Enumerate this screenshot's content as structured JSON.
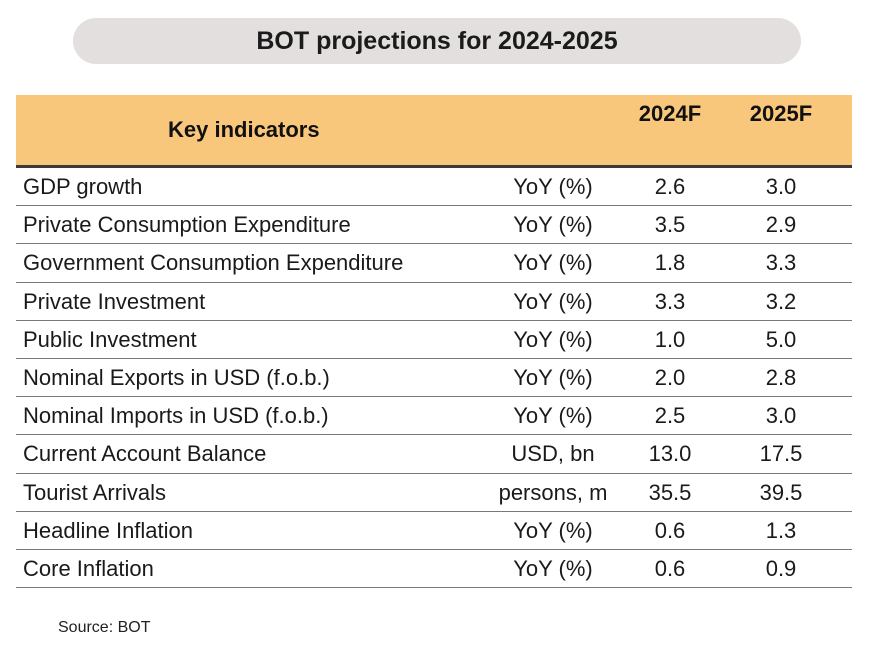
{
  "title": "BOT projections for 2024-2025",
  "table": {
    "header": {
      "indicator": "Key indicators",
      "year1": "2024F",
      "year2": "2025F"
    },
    "rows": [
      {
        "name": "GDP growth",
        "unit": "YoY (%)",
        "v1": "2.6",
        "v2": "3.0"
      },
      {
        "name": "Private Consumption Expenditure",
        "unit": "YoY (%)",
        "v1": "3.5",
        "v2": "2.9"
      },
      {
        "name": "Government Consumption Expenditure",
        "unit": "YoY (%)",
        "v1": "1.8",
        "v2": "3.3"
      },
      {
        "name": "Private Investment",
        "unit": "YoY (%)",
        "v1": "3.3",
        "v2": "3.2"
      },
      {
        "name": "Public Investment",
        "unit": "YoY (%)",
        "v1": "1.0",
        "v2": "5.0"
      },
      {
        "name": "Nominal Exports in USD (f.o.b.)",
        "unit": "YoY (%)",
        "v1": "2.0",
        "v2": "2.8"
      },
      {
        "name": "Nominal Imports in USD (f.o.b.)",
        "unit": "YoY (%)",
        "v1": "2.5",
        "v2": "3.0"
      },
      {
        "name": "Current Account Balance",
        "unit": "USD, bn",
        "v1": "13.0",
        "v2": "17.5"
      },
      {
        "name": "Tourist Arrivals",
        "unit": "persons, m",
        "v1": "35.5",
        "v2": "39.5"
      },
      {
        "name": "Headline Inflation",
        "unit": "YoY (%)",
        "v1": "0.6",
        "v2": "1.3"
      },
      {
        "name": "Core Inflation",
        "unit": "YoY (%)",
        "v1": "0.6",
        "v2": "0.9"
      }
    ]
  },
  "source": "Source: BOT",
  "colors": {
    "header_bg": "#f9c77c",
    "title_bg": "#e3dfde"
  }
}
